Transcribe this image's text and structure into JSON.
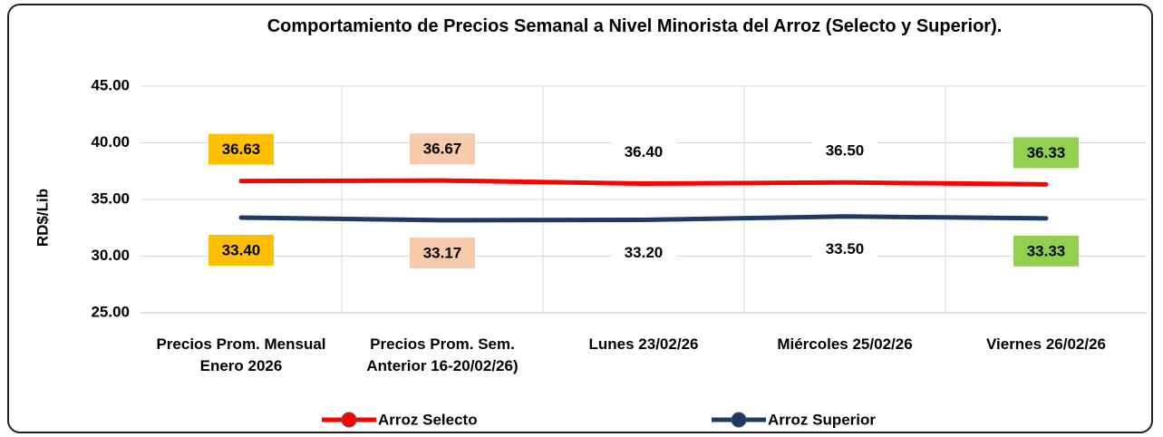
{
  "chart_data": {
    "type": "line",
    "title": "Comportamiento de Precios Semanal a Nivel Minorista del Arroz (Selecto y Superior).",
    "y_label": "RD$/Lib",
    "categories": [
      "Precios Prom. Mensual Enero 2026",
      "Precios Prom. Sem. Anterior 16-20/02/26)",
      "Lunes 23/02/26",
      "Miércoles 25/02/26",
      "Viernes 26/02/26"
    ],
    "series": [
      {
        "name": "Arroz Selecto",
        "color": "#ff0000",
        "values": [
          36.63,
          36.67,
          36.4,
          36.5,
          36.33
        ],
        "value_labels": [
          "36.63",
          "36.67",
          "36.40",
          "36.50",
          "36.33"
        ]
      },
      {
        "name": "Arroz Superior",
        "color": "#1f3864",
        "values": [
          33.4,
          33.17,
          33.2,
          33.5,
          33.33
        ],
        "value_labels": [
          "33.40",
          "33.17",
          "33.20",
          "33.50",
          "33.33"
        ]
      }
    ],
    "label_backgrounds": [
      "#ffc000",
      "#f8cbad",
      "#ffffff",
      "#ffffff",
      "#92d050"
    ],
    "ylim": [
      25,
      45
    ],
    "yticks": [
      {
        "value": 25,
        "label": "25.00"
      },
      {
        "value": 30,
        "label": "30.00"
      },
      {
        "value": 35,
        "label": "35.00"
      },
      {
        "value": 40,
        "label": "40.00"
      },
      {
        "value": 45,
        "label": "45.00"
      }
    ],
    "grid": true
  }
}
